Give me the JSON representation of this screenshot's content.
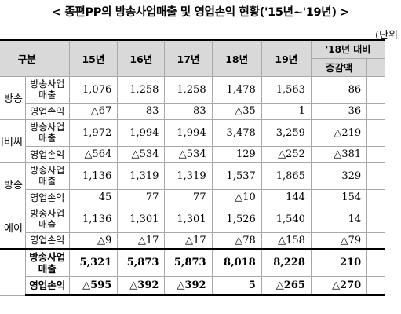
{
  "title": "< 종편PP의 방송사업매출 및 영업손익 현황('15년~'19년) >",
  "unit": "(단위",
  "header": {
    "category": "구분",
    "years": [
      "15년",
      "16년",
      "17년",
      "18년",
      "19년"
    ],
    "compare_top": "'18년 대비",
    "compare_sub": "증감액"
  },
  "groups": [
    {
      "name": "방송",
      "rows": [
        {
          "label": "방송사업 매출",
          "values": [
            "1,076",
            "1,258",
            "1,258",
            "1,478",
            "1,563"
          ],
          "change": "86"
        },
        {
          "label": "영업손익",
          "values": [
            "△67",
            "83",
            "83",
            "△35",
            "1"
          ],
          "change": "36"
        }
      ]
    },
    {
      "name": "비비씨",
      "rows": [
        {
          "label": "방송사업 매출",
          "values": [
            "1,972",
            "1,994",
            "1,994",
            "3,478",
            "3,259"
          ],
          "change": "△219"
        },
        {
          "label": "영업손익",
          "values": [
            "△564",
            "△534",
            "△534",
            "129",
            "△252"
          ],
          "change": "△381"
        }
      ]
    },
    {
      "name": "방송",
      "rows": [
        {
          "label": "방송사업 매출",
          "values": [
            "1,136",
            "1,319",
            "1,319",
            "1,537",
            "1,865"
          ],
          "change": "329"
        },
        {
          "label": "영업손익",
          "values": [
            "45",
            "77",
            "77",
            "△10",
            "144"
          ],
          "change": "154"
        }
      ]
    },
    {
      "name": "에이",
      "rows": [
        {
          "label": "방송사업 매출",
          "values": [
            "1,136",
            "1,301",
            "1,301",
            "1,526",
            "1,540"
          ],
          "change": "14"
        },
        {
          "label": "영업손익",
          "values": [
            "△9",
            "△17",
            "△17",
            "△78",
            "△158"
          ],
          "change": "△79"
        }
      ]
    }
  ],
  "total": {
    "rows": [
      {
        "label": "방송사업 매출",
        "values": [
          "5,321",
          "5,873",
          "5,873",
          "8,018",
          "8,228"
        ],
        "change": "210"
      },
      {
        "label": "영업손익",
        "values": [
          "△595",
          "△392",
          "△392",
          "5",
          "△265"
        ],
        "change": "△270"
      }
    ]
  }
}
